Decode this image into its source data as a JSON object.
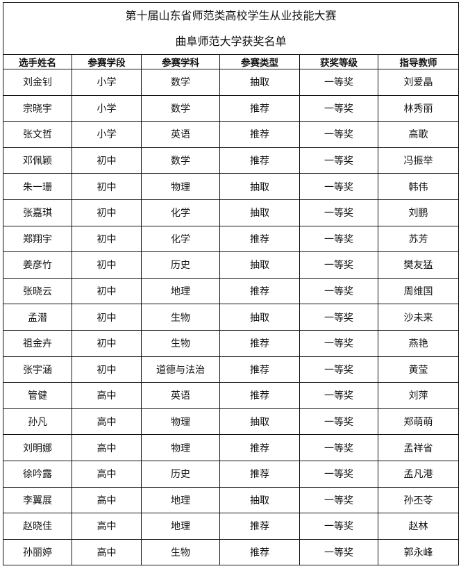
{
  "title_line1": "第十届山东省师范类高校学生从业技能大赛",
  "title_line2": "曲阜师范大学获奖名单",
  "headers": [
    "选手姓名",
    "参赛学段",
    "参赛学科",
    "参赛类型",
    "获奖等级",
    "指导教师"
  ],
  "rows": [
    [
      "刘金钊",
      "小学",
      "数学",
      "抽取",
      "一等奖",
      "刘爱晶"
    ],
    [
      "宗晓宇",
      "小学",
      "数学",
      "推荐",
      "一等奖",
      "林秀丽"
    ],
    [
      "张文哲",
      "小学",
      "英语",
      "推荐",
      "一等奖",
      "高歌"
    ],
    [
      "邓佩颖",
      "初中",
      "数学",
      "推荐",
      "一等奖",
      "冯振举"
    ],
    [
      "朱一珊",
      "初中",
      "物理",
      "抽取",
      "一等奖",
      "韩伟"
    ],
    [
      "张嘉琪",
      "初中",
      "化学",
      "抽取",
      "一等奖",
      "刘鹏"
    ],
    [
      "郑翔宇",
      "初中",
      "化学",
      "推荐",
      "一等奖",
      "苏芳"
    ],
    [
      "姜彦竹",
      "初中",
      "历史",
      "抽取",
      "一等奖",
      "樊友猛"
    ],
    [
      "张晓云",
      "初中",
      "地理",
      "推荐",
      "一等奖",
      "周维国"
    ],
    [
      "孟潜",
      "初中",
      "生物",
      "抽取",
      "一等奖",
      "沙未来"
    ],
    [
      "祖金卉",
      "初中",
      "生物",
      "推荐",
      "一等奖",
      "燕艳"
    ],
    [
      "张宇涵",
      "初中",
      "道德与法治",
      "推荐",
      "一等奖",
      "黄莹"
    ],
    [
      "管健",
      "高中",
      "英语",
      "推荐",
      "一等奖",
      "刘萍"
    ],
    [
      "孙凡",
      "高中",
      "物理",
      "抽取",
      "一等奖",
      "郑萌萌"
    ],
    [
      "刘明娜",
      "高中",
      "物理",
      "推荐",
      "一等奖",
      "孟祥省"
    ],
    [
      "徐吟露",
      "高中",
      "历史",
      "推荐",
      "一等奖",
      "孟凡港"
    ],
    [
      "李翼展",
      "高中",
      "地理",
      "抽取",
      "一等奖",
      "孙丕苓"
    ],
    [
      "赵晓佳",
      "高中",
      "地理",
      "推荐",
      "一等奖",
      "赵林"
    ],
    [
      "孙丽婷",
      "高中",
      "生物",
      "推荐",
      "一等奖",
      "郭永峰"
    ]
  ]
}
